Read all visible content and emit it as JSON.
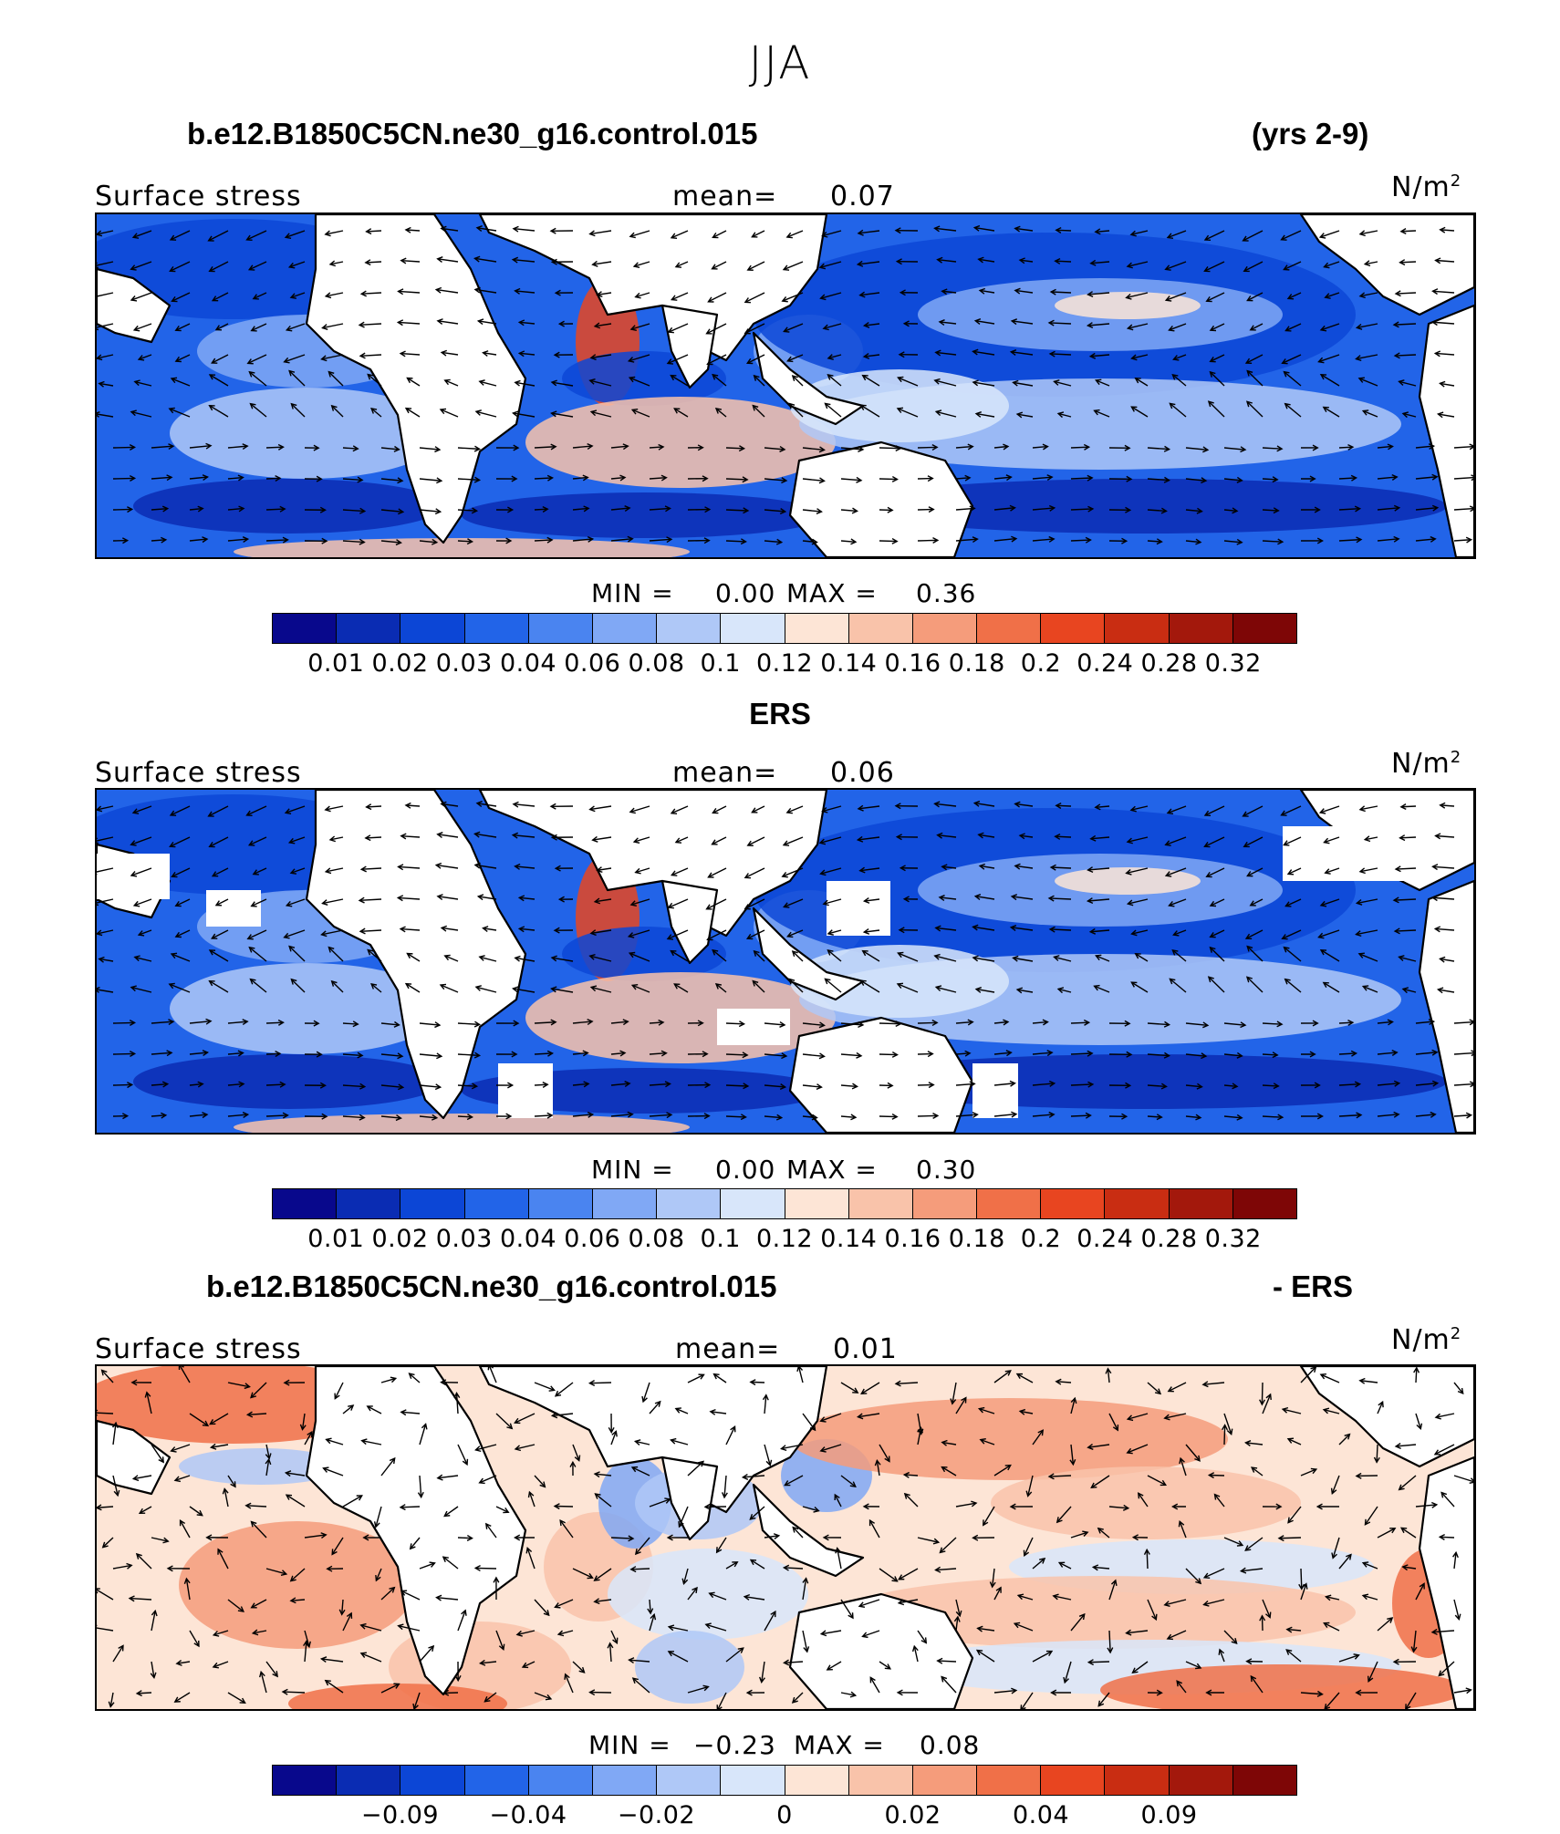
{
  "title": "JJA",
  "palette": [
    "#08088c",
    "#0a2cb3",
    "#0c46d6",
    "#2264e8",
    "#4a84f0",
    "#80a8f5",
    "#afc8f7",
    "#d8e6fa",
    "#fde5d6",
    "#f9c3aa",
    "#f59c7b",
    "#f07048",
    "#e84520",
    "#c92d12",
    "#a3180c",
    "#7e0606"
  ],
  "panels": [
    {
      "case_left": "b.e12.B1850C5CN.ne30_g16.control.015",
      "case_right": "(yrs 2-9)",
      "left_label": "Surface stress",
      "mean_label": "mean=",
      "mean_value": "0.07",
      "units": "N/m",
      "units_exp": "2",
      "min_label": "MIN =",
      "min_value": "0.00",
      "max_label": "MAX =",
      "max_value": "0.36",
      "ticks": [
        "0.01",
        "0.02",
        "0.03",
        "0.04",
        "0.06",
        "0.08",
        "0.1",
        "0.12",
        "0.14",
        "0.16",
        "0.18",
        "0.2",
        "0.24",
        "0.28",
        "0.32"
      ]
    },
    {
      "case_left": "",
      "case_center": "ERS",
      "left_label": "Surface stress",
      "mean_label": "mean=",
      "mean_value": "0.06",
      "units": "N/m",
      "units_exp": "2",
      "min_label": "MIN =",
      "min_value": "0.00",
      "max_label": "MAX =",
      "max_value": "0.30",
      "ticks": [
        "0.01",
        "0.02",
        "0.03",
        "0.04",
        "0.06",
        "0.08",
        "0.1",
        "0.12",
        "0.14",
        "0.16",
        "0.18",
        "0.2",
        "0.24",
        "0.28",
        "0.32"
      ]
    },
    {
      "case_left": "b.e12.B1850C5CN.ne30_g16.control.015",
      "case_right": "- ERS",
      "left_label": "Surface stress",
      "mean_label": "mean=",
      "mean_value": "0.01",
      "units": "N/m",
      "units_exp": "2",
      "min_label": "MIN =",
      "min_value": "−0.23",
      "max_label": "MAX =",
      "max_value": "0.08",
      "ticks": [
        "−0.09",
        "−0.04",
        "−0.02",
        "0",
        "0.02",
        "0.04",
        "0.09"
      ]
    }
  ]
}
